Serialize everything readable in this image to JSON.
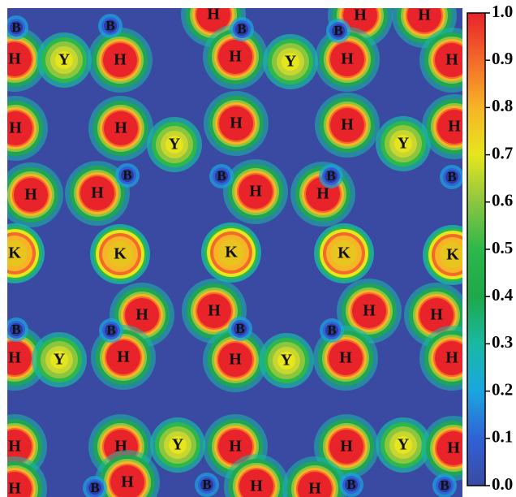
{
  "chart_data": {
    "type": "heatmap",
    "title": "",
    "xlabel": "",
    "ylabel": "",
    "colorbar": {
      "min": 0.0,
      "max": 1.0,
      "ticks": [
        "0.0",
        "0.1",
        "0.2",
        "0.3",
        "0.4",
        "0.5",
        "0.6",
        "0.7",
        "0.8",
        "0.9",
        "1.0"
      ],
      "colormap": [
        "#3a4aa3",
        "#2f62d6",
        "#1aa6e0",
        "#19b9a3",
        "#1ea84a",
        "#2cb84a",
        "#8cc63f",
        "#e6e61e",
        "#f7b426",
        "#f46a2a",
        "#e8232a"
      ]
    },
    "background_value": 0.0,
    "atoms": [
      {
        "label": "B",
        "value": 0.05
      },
      {
        "label": "B",
        "value": 0.05
      },
      {
        "label": "H",
        "value": 0.95
      },
      {
        "label": "B",
        "value": 0.05
      },
      {
        "label": "H",
        "value": 0.95
      },
      {
        "label": "B",
        "value": 0.05
      },
      {
        "label": "H",
        "value": 0.95
      },
      {
        "label": "H",
        "value": 0.95
      },
      {
        "label": "Y",
        "value": 0.75
      },
      {
        "label": "H",
        "value": 0.95
      },
      {
        "label": "H",
        "value": 0.95
      },
      {
        "label": "Y",
        "value": 0.75
      },
      {
        "label": "H",
        "value": 0.95
      },
      {
        "label": "H",
        "value": 0.95
      },
      {
        "label": "H",
        "value": 0.95
      },
      {
        "label": "H",
        "value": 0.95
      },
      {
        "label": "Y",
        "value": 0.75
      },
      {
        "label": "H",
        "value": 0.95
      },
      {
        "label": "H",
        "value": 0.95
      },
      {
        "label": "Y",
        "value": 0.75
      },
      {
        "label": "H",
        "value": 0.95
      },
      {
        "label": "B",
        "value": 0.05
      },
      {
        "label": "B",
        "value": 0.05
      },
      {
        "label": "B",
        "value": 0.05
      },
      {
        "label": "B",
        "value": 0.05
      },
      {
        "label": "H",
        "value": 0.95
      },
      {
        "label": "H",
        "value": 0.95
      },
      {
        "label": "H",
        "value": 0.95
      },
      {
        "label": "H",
        "value": 0.95
      },
      {
        "label": "K",
        "value": 0.85
      },
      {
        "label": "K",
        "value": 0.85
      },
      {
        "label": "K",
        "value": 0.85
      },
      {
        "label": "K",
        "value": 0.85
      },
      {
        "label": "K",
        "value": 0.85
      },
      {
        "label": "H",
        "value": 0.95
      },
      {
        "label": "H",
        "value": 0.95
      },
      {
        "label": "H",
        "value": 0.95
      },
      {
        "label": "H",
        "value": 0.95
      },
      {
        "label": "B",
        "value": 0.05
      },
      {
        "label": "B",
        "value": 0.05
      },
      {
        "label": "B",
        "value": 0.05
      },
      {
        "label": "B",
        "value": 0.05
      },
      {
        "label": "H",
        "value": 0.95
      },
      {
        "label": "Y",
        "value": 0.75
      },
      {
        "label": "H",
        "value": 0.95
      },
      {
        "label": "H",
        "value": 0.95
      },
      {
        "label": "Y",
        "value": 0.75
      },
      {
        "label": "H",
        "value": 0.95
      },
      {
        "label": "H",
        "value": 0.95
      },
      {
        "label": "H",
        "value": 0.95
      },
      {
        "label": "H",
        "value": 0.95
      },
      {
        "label": "Y",
        "value": 0.75
      },
      {
        "label": "H",
        "value": 0.95
      },
      {
        "label": "H",
        "value": 0.95
      },
      {
        "label": "Y",
        "value": 0.75
      },
      {
        "label": "H",
        "value": 0.95
      },
      {
        "label": "H",
        "value": 0.95
      },
      {
        "label": "B",
        "value": 0.05
      },
      {
        "label": "H",
        "value": 0.95
      },
      {
        "label": "B",
        "value": 0.05
      },
      {
        "label": "H",
        "value": 0.95
      },
      {
        "label": "H",
        "value": 0.95
      },
      {
        "label": "B",
        "value": 0.05
      },
      {
        "label": "B",
        "value": 0.05
      }
    ]
  }
}
